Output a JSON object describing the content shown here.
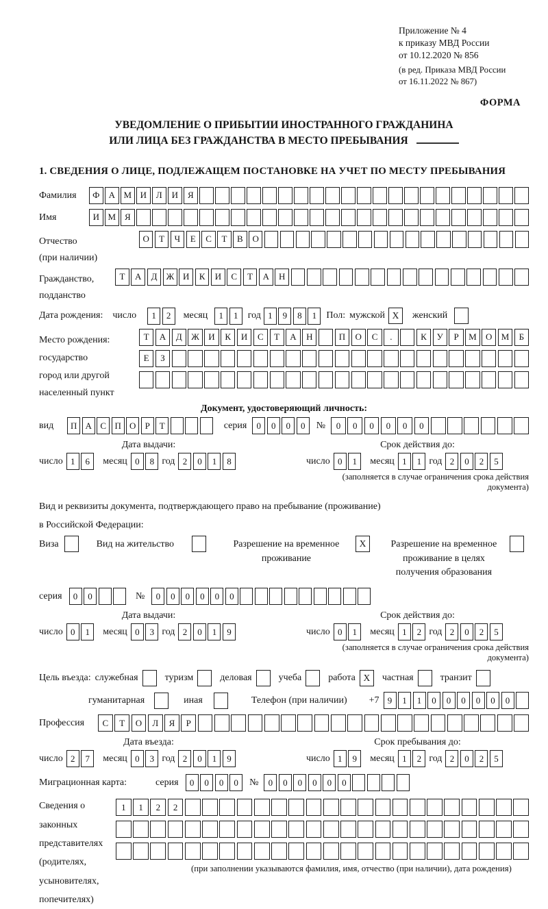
{
  "page": {
    "appendix": [
      "Приложение № 4",
      "к приказу МВД России",
      "от 10.12.2020 № 856"
    ],
    "appendix_note": [
      "(в ред. Приказа МВД России",
      "от 16.11.2022 № 867)"
    ],
    "form_label": "ФОРМА",
    "title_line1": "УВЕДОМЛЕНИЕ О ПРИБЫТИИ ИНОСТРАННОГО ГРАЖДАНИНА",
    "title_line2": "ИЛИ ЛИЦА БЕЗ ГРАЖДАНСТВА В МЕСТО ПРЕБЫВАНИЯ",
    "section1_heading": "1. СВЕДЕНИЯ О ЛИЦЕ, ПОДЛЕЖАЩЕМ ПОСТАНОВКЕ НА УЧЕТ ПО МЕСТУ ПРЕБЫВАНИЯ"
  },
  "labels": {
    "day": "число",
    "month": "месяц",
    "year": "год",
    "series": "серия",
    "number": "№",
    "issue_date": "Дата выдачи:",
    "valid_until": "Срок действия до:",
    "entry_date": "Дата въезда:",
    "stay_until": "Срок пребывания до:",
    "restriction_note": "(заполняется в случае ограничения срока действия документа)"
  },
  "surname": {
    "label": "Фамилия",
    "cells": {
      "value": "ФАМИЛИЯ",
      "count": 28
    }
  },
  "firstname": {
    "label": "Имя",
    "cells": {
      "value": "ИМЯ",
      "count": 28
    }
  },
  "patronymic": {
    "label": "Отчество",
    "label2": "(при наличии)",
    "cells": {
      "value": "ОТЧЕСТВО",
      "count": 25
    }
  },
  "citizenship": {
    "label": "Гражданство,",
    "label2": "подданство",
    "cells": {
      "value": "ТАДЖИКИСТАН",
      "count": 26
    }
  },
  "birth": {
    "label": "Дата рождения:",
    "day": {
      "value": "12",
      "count": 2
    },
    "month": {
      "value": "11",
      "count": 2
    },
    "year": {
      "value": "1981",
      "count": 4
    },
    "sex_label": "Пол:",
    "male_label": "мужской",
    "male_mark": "X",
    "female_label": "женский",
    "female_mark": ""
  },
  "birthplace": {
    "label_lines": [
      "Место рождения:",
      "государство",
      "город или другой",
      "населенный пункт"
    ],
    "row1": {
      "value": "ТАДЖИКИСТАН ПОС. КУРМОМБ",
      "count": 24
    },
    "row2": {
      "value": "ЕЗ",
      "count": 24
    },
    "row3": {
      "value": "",
      "count": 24
    }
  },
  "identity_doc": {
    "heading": "Документ, удостоверяющий личность:",
    "type_label": "вид",
    "type": {
      "value": "ПАСПОРТ",
      "count": 10
    },
    "series": {
      "value": "0000",
      "count": 4
    },
    "number": {
      "value": "000000",
      "count": 12
    },
    "issue": {
      "day": {
        "value": "16",
        "count": 2
      },
      "month": {
        "value": "08",
        "count": 2
      },
      "year": {
        "value": "2018",
        "count": 4
      }
    },
    "expiry": {
      "day": {
        "value": "01",
        "count": 2
      },
      "month": {
        "value": "11",
        "count": 2
      },
      "year": {
        "value": "2025",
        "count": 4
      }
    }
  },
  "residence_doc": {
    "intro_line1": "Вид и реквизиты документа, подтверждающего право на пребывание (проживание)",
    "intro_line2": "в Российской Федерации:",
    "options": [
      {
        "label": "Виза",
        "mark": ""
      },
      {
        "label": "Вид на жительство",
        "mark": ""
      },
      {
        "label": "Разрешение на временное проживание",
        "mark": "X"
      },
      {
        "label": "Разрешение на временное проживание в целях получения образования",
        "mark": ""
      }
    ],
    "series": {
      "value": "00",
      "count": 4
    },
    "number": {
      "value": "000000",
      "count": 15
    },
    "issue": {
      "day": {
        "value": "01",
        "count": 2
      },
      "month": {
        "value": "03",
        "count": 2
      },
      "year": {
        "value": "2019",
        "count": 4
      }
    },
    "expiry": {
      "day": {
        "value": "01",
        "count": 2
      },
      "month": {
        "value": "12",
        "count": 2
      },
      "year": {
        "value": "2025",
        "count": 4
      }
    }
  },
  "purpose": {
    "label": "Цель въезда:",
    "options": [
      {
        "label": "служебная",
        "mark": ""
      },
      {
        "label": "туризм",
        "mark": ""
      },
      {
        "label": "деловая",
        "mark": ""
      },
      {
        "label": "учеба",
        "mark": ""
      },
      {
        "label": "работа",
        "mark": "X"
      },
      {
        "label": "частная",
        "mark": ""
      },
      {
        "label": "транзит",
        "mark": ""
      },
      {
        "label": "гуманитарная",
        "mark": ""
      },
      {
        "label": "иная",
        "mark": ""
      }
    ],
    "phone_label": "Телефон (при наличии)",
    "phone_prefix": "+7",
    "phone": {
      "value": "911000000",
      "count": 10
    }
  },
  "profession": {
    "label": "Профессия",
    "cells": {
      "value": "СТОЛЯР",
      "count": 26
    }
  },
  "entry": {
    "issue": {
      "day": {
        "value": "27",
        "count": 2
      },
      "month": {
        "value": "03",
        "count": 2
      },
      "year": {
        "value": "2019",
        "count": 4
      }
    },
    "expiry": {
      "day": {
        "value": "19",
        "count": 2
      },
      "month": {
        "value": "12",
        "count": 2
      },
      "year": {
        "value": "2025",
        "count": 4
      }
    }
  },
  "migration_card": {
    "label": "Миграционная карта:",
    "series": {
      "value": "0000",
      "count": 4
    },
    "number": {
      "value": "000000",
      "count": 10
    }
  },
  "representatives": {
    "label_lines": [
      "Сведения о",
      "законных",
      "представителях",
      "(родителях,",
      "усыновителях,",
      "попечителях)"
    ],
    "row1": {
      "value": "1122",
      "count": 24
    },
    "row2": {
      "value": "",
      "count": 24
    },
    "row3": {
      "value": "",
      "count": 24
    },
    "note": "(при заполнении указываются фамилия, имя, отчество (при наличии), дата рождения)"
  }
}
